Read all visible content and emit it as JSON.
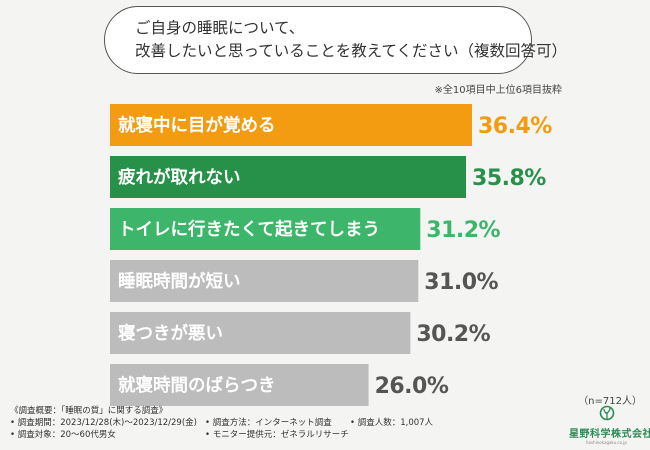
{
  "question": {
    "line1": "ご自身の睡眠について、",
    "line2": "改善したいと思っていることを教えてください（複数回答可）"
  },
  "note": "※全10項目中上位6項目抜粋",
  "n_label": "（n=712人）",
  "survey": {
    "title": "《調査概要：「睡眠の質」に関する調査》",
    "period": "• 調査期間：2023/12/28(木)〜2023/12/29(金)",
    "method": "• 調査方法：インターネット調査",
    "count": "• 調査人数：1,007人",
    "target": "• 調査対象：20〜60代男女",
    "provider": "• モニター提供元：ゼネラルリサーチ"
  },
  "logo": {
    "name": "星野科学株式会社",
    "sub": "hoshinokagaku.co.jp"
  },
  "chart_data": {
    "type": "bar",
    "orientation": "horizontal",
    "categories": [
      "就寝中に目が覚める",
      "疲れが取れない",
      "トイレに行きたくて起きてしまう",
      "睡眠時間が短い",
      "寝つきが悪い",
      "就寝時間のばらつき"
    ],
    "values": [
      36.4,
      35.8,
      31.2,
      31.0,
      30.2,
      26.0
    ],
    "value_labels": [
      "36.4%",
      "35.8%",
      "31.2%",
      "31.0%",
      "30.2%",
      "26.0%"
    ],
    "bar_colors": [
      "#f39c12",
      "#27914a",
      "#3db56a",
      "#bcbcbc",
      "#bcbcbc",
      "#bcbcbc"
    ],
    "value_colors": [
      "#f39c12",
      "#27914a",
      "#3db56a",
      "#555555",
      "#555555",
      "#555555"
    ],
    "xlim": [
      0,
      36.4
    ]
  }
}
